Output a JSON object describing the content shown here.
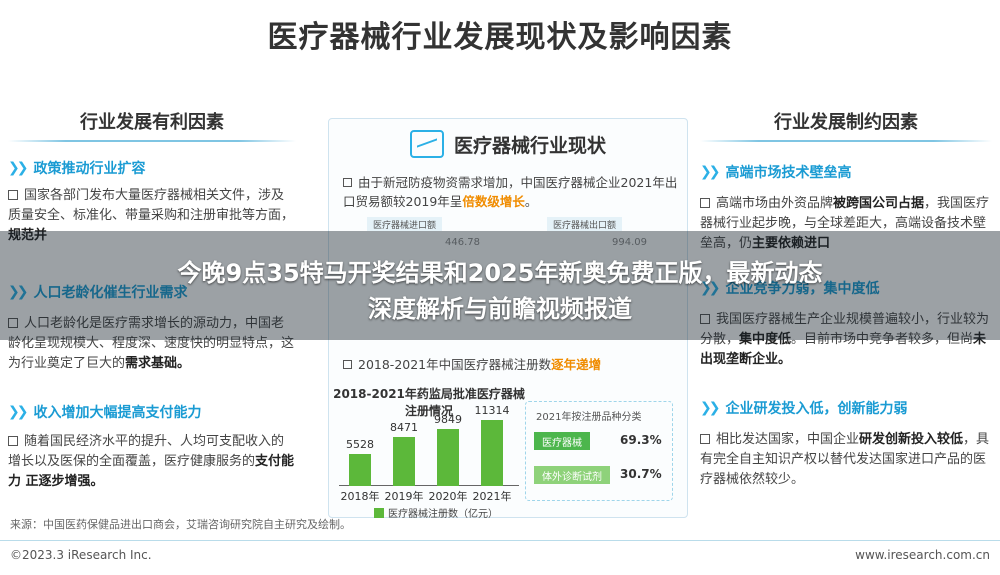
{
  "title": "医疗器械行业发展现状及影响因素",
  "left": {
    "heading": "行业发展有利因素",
    "sections": [
      {
        "title": "政策推动行业扩容",
        "text_a": "国家各部门发布大量医疗器械相关文件，涉及质量安全、标准化、带量采购和注册审批等方面，",
        "text_b": "规范并"
      },
      {
        "title": "人口老龄化催生行业需求",
        "text_a": "人口老龄化是医疗需求增长的源动力，中国老龄化呈现规模大、程度深、速度快的明显特点，这为行业奠定了巨大的",
        "text_b": "需求基础。"
      },
      {
        "title": "收入增加大幅提高支付能力",
        "text_a": "随着国民经济水平的提升、人均可支配收入的增长以及医保的全面覆盖，医疗健康服务的",
        "text_b": "支付能力 正逐步增强。"
      }
    ]
  },
  "center": {
    "heading": "医疗器械行业现状",
    "text1_a": "由于新冠防疫物资需求增加，中国医疗器械企业2021年出口贸易额较2019年呈",
    "text1_b": "倍数级增长",
    "text1_c": "。",
    "table_h1": "医疗器械进口额",
    "table_h2": "医疗器械出口额",
    "table_v1": "446.78",
    "table_v2": "994.09",
    "text2_a": "2018-2021年中国医疗器械注册数",
    "text2_b": "逐年递增",
    "chart_title": "2018-2021年药监局批准医疗器械注册情况",
    "legend": "医疗器械注册数（亿元）",
    "cat_title": "2021年按注册品种分类",
    "cat_a": "医疗器械",
    "cat_a_pct": "69.3%",
    "cat_b": "体外诊断试剂",
    "cat_b_pct": "30.7%"
  },
  "chart_data": {
    "type": "bar",
    "categories": [
      "2018年",
      "2019年",
      "2020年",
      "2021年"
    ],
    "values": [
      5528,
      8471,
      9849,
      11314
    ],
    "title": "2018-2021年药监局批准医疗器械注册情况",
    "legend": [
      "医疗器械注册数（亿元）"
    ],
    "ylim": [
      0,
      12000
    ],
    "color": "#5cb83a"
  },
  "right": {
    "heading": "行业发展制约因素",
    "sections": [
      {
        "title": "高端市场技术壁垒高",
        "text_a": "高端市场由外资品牌",
        "text_b": "被跨国公司占据",
        "text_c": "，我国医疗器械行业起步晚，与全球差距大，高端设备技术壁垒高，仍",
        "text_d": "主要依赖进口"
      },
      {
        "title": "企业竞争力弱，集中度低",
        "text_a": "我国医疗器械生产企业规模普遍较小，行业较为分散，",
        "text_b": "集中度低",
        "text_c": "。目前市场中竞争者较多，但尚",
        "text_d": "未出现垄断企业。"
      },
      {
        "title": "企业研发投入低，创新能力弱",
        "text_a": "相比发达国家，中国企业",
        "text_b": "研发创新投入较低",
        "text_c": "，具有完全自主知识产权以替代发达国家进口产品的医疗器械依然较少。"
      }
    ]
  },
  "overlay": {
    "line1": "今晚9点35特马开奖结果和2025年新奥免费正版，最新动态",
    "line2": "深度解析与前瞻视频报道"
  },
  "footer": {
    "source": "来源：中国医药保健品进出口商会，艾瑞咨询研究院自主研究及绘制。",
    "copyright": "©2023.3 iResearch Inc.",
    "site": "www.iresearch.com.cn"
  }
}
